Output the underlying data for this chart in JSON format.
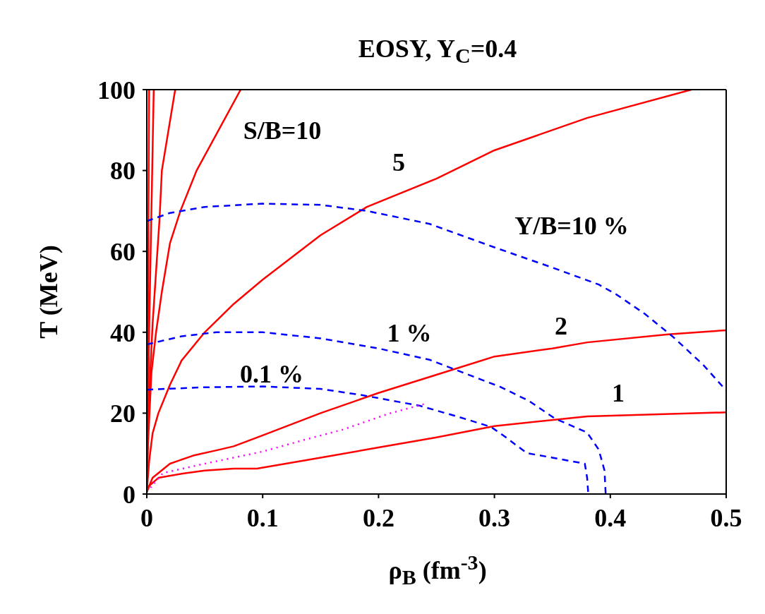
{
  "chart_data": {
    "type": "line",
    "title": "EOSY, Y$_{C}$=0.4",
    "xlabel": "ρ$_{B}$ (fm$^{-3}$)",
    "ylabel": "T (MeV)",
    "xlim": [
      0,
      0.5
    ],
    "ylim": [
      0,
      100
    ],
    "xticks": [
      0,
      0.1,
      0.2,
      0.3,
      0.4,
      0.5
    ],
    "yticks": [
      0,
      20,
      40,
      60,
      80,
      100
    ],
    "grid": false,
    "legend": false,
    "marker": "none",
    "series": [
      {
        "color": "#ff0000",
        "line_style": "solid",
        "x": [
          0,
          0.002,
          0.01,
          0.03,
          0.05,
          0.075,
          0.095,
          0.15,
          0.2,
          0.25,
          0.3,
          0.38,
          0.5
        ],
        "values": [
          0.5,
          2,
          4,
          5,
          5.8,
          6.3,
          6.3,
          9,
          11.5,
          14,
          16.8,
          19.2,
          20.2
        ]
      },
      {
        "color": "#ff0000",
        "line_style": "solid",
        "x": [
          0,
          0.005,
          0.02,
          0.04,
          0.06,
          0.075,
          0.1,
          0.15,
          0.2,
          0.25,
          0.3,
          0.35,
          0.38,
          0.45,
          0.5
        ],
        "values": [
          0.5,
          4,
          7.5,
          9.5,
          10.8,
          11.8,
          14.5,
          20,
          25,
          29.5,
          34,
          36,
          37.5,
          39.5,
          40.5
        ]
      },
      {
        "color": "#ff0000",
        "line_style": "solid",
        "x": [
          0,
          0.002,
          0.005,
          0.01,
          0.02,
          0.03,
          0.05,
          0.075,
          0.1,
          0.125,
          0.15,
          0.19,
          0.25,
          0.3,
          0.38,
          0.47
        ],
        "values": [
          0.5,
          8,
          15,
          20,
          27,
          33,
          40,
          47,
          53,
          58.5,
          64,
          71,
          78,
          85,
          93,
          100
        ]
      },
      {
        "color": "#ff0000",
        "line_style": "solid",
        "x": [
          0,
          0.001,
          0.004,
          0.008,
          0.013,
          0.02,
          0.029,
          0.043,
          0.081
        ],
        "values": [
          0.5,
          12,
          30,
          40,
          50,
          62,
          70,
          80,
          100
        ]
      },
      {
        "color": "#ff0000",
        "line_style": "solid",
        "x": [
          0,
          0.001,
          0.003,
          0.005,
          0.008,
          0.011,
          0.013,
          0.0245
        ],
        "values": [
          0.5,
          15,
          30,
          42,
          55,
          68,
          80,
          100
        ]
      },
      {
        "color": "#ff0000",
        "line_style": "solid",
        "x": [
          0,
          0.002,
          0.004,
          0.006
        ],
        "values": [
          0.5,
          40,
          70,
          100
        ]
      },
      {
        "color": "#ff0000",
        "line_style": "solid",
        "x": [
          0,
          0.001,
          0.002
        ],
        "values": [
          0.5,
          40,
          100
        ]
      },
      {
        "color": "#0000ff",
        "line_style": "dashed",
        "x": [
          0,
          0.02,
          0.05,
          0.1,
          0.15,
          0.19,
          0.244,
          0.3,
          0.35,
          0.39,
          0.405,
          0.43,
          0.454,
          0.48,
          0.5
        ],
        "values": [
          67.5,
          69.5,
          71,
          71.8,
          71.5,
          70,
          66.8,
          61,
          56,
          51.8,
          49.4,
          44.5,
          38.9,
          32,
          25.6
        ]
      },
      {
        "color": "#0000ff",
        "line_style": "dashed",
        "x": [
          0,
          0.03,
          0.06,
          0.1,
          0.15,
          0.2,
          0.244,
          0.305,
          0.33,
          0.352,
          0.38,
          0.39,
          0.395,
          0.396
        ],
        "values": [
          37,
          39,
          40,
          40,
          38.5,
          36,
          33.2,
          26.5,
          23,
          18.7,
          15.2,
          11,
          5.8,
          0
        ]
      },
      {
        "color": "#0000ff",
        "line_style": "dashed",
        "x": [
          0,
          0.05,
          0.1,
          0.15,
          0.187,
          0.236,
          0.27,
          0.297,
          0.31,
          0.328,
          0.35,
          0.378,
          0.38,
          0.381
        ],
        "values": [
          25.8,
          26.4,
          26.6,
          26,
          24.4,
          21.8,
          19,
          16.6,
          14,
          10.1,
          9,
          7.5,
          4,
          0
        ]
      },
      {
        "color": "#ff00ff",
        "line_style": "dotted",
        "x": [
          0,
          0.014,
          0.05,
          0.075,
          0.1,
          0.136,
          0.17,
          0.208,
          0.24
        ],
        "values": [
          0.5,
          5.2,
          7.5,
          9,
          10.5,
          13.4,
          16,
          19.8,
          22.3
        ]
      }
    ],
    "annotations": [
      "S/B=10",
      "5",
      "Y/B=10 %",
      "2",
      "1 %",
      "0.1 %",
      "1"
    ]
  }
}
